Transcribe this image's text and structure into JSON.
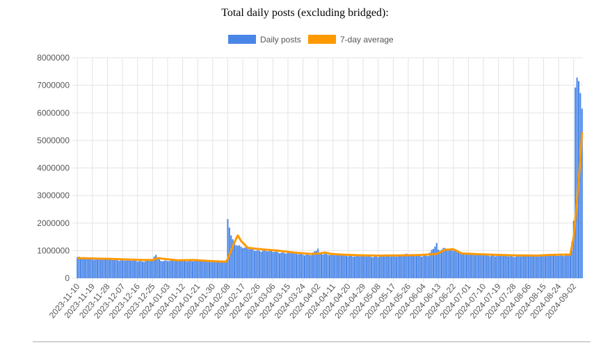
{
  "title": "Total daily posts (excluding bridged):",
  "colors": {
    "bars": "#4a86e8",
    "average": "#ff9900",
    "grid": "#e3e3e3"
  },
  "chart_data": {
    "type": "bar",
    "title": "Total daily posts (excluding bridged):",
    "xlabel": "",
    "ylabel": "",
    "ylim": [
      0,
      8000000
    ],
    "yticks": [
      "8000000",
      "7000000",
      "6000000",
      "5000000",
      "4000000",
      "3000000",
      "2000000",
      "1000000",
      "0"
    ],
    "xtick_labels": [
      "2023-11-10",
      "2023-11-19",
      "2023-11-28",
      "2023-12-07",
      "2023-12-16",
      "2023-12-25",
      "2024-01-03",
      "2024-01-12",
      "2024-01-21",
      "2024-01-30",
      "2024-02-08",
      "2024-02-17",
      "2024-02-26",
      "2024-03-06",
      "2024-03-15",
      "2024-03-24",
      "2024-04-02",
      "2024-04-11",
      "2024-04-20",
      "2024-04-29",
      "2024-05-08",
      "2024-05-17",
      "2024-05-26",
      "2024-06-04",
      "2024-06-13",
      "2024-06-22",
      "2024-07-01",
      "2024-07-10",
      "2024-07-19",
      "2024-07-28",
      "2024-08-06",
      "2024-08-15",
      "2024-08-24",
      "2024-09-02"
    ],
    "start_date": "2023-11-10",
    "grid": true,
    "legend_position": "top",
    "series": [
      {
        "name": "Daily posts",
        "kind": "bar",
        "values": []
      },
      {
        "name": "7-day average",
        "kind": "line",
        "values": []
      }
    ],
    "daily_posts_keyframes": [
      [
        0,
        760000
      ],
      [
        10,
        700000
      ],
      [
        20,
        680000
      ],
      [
        30,
        640000
      ],
      [
        40,
        620000
      ],
      [
        45,
        640000
      ],
      [
        46,
        760000
      ],
      [
        47,
        860000
      ],
      [
        48,
        720000
      ],
      [
        50,
        640000
      ],
      [
        60,
        640000
      ],
      [
        70,
        630000
      ],
      [
        80,
        610000
      ],
      [
        89,
        620000
      ],
      [
        90,
        2080000
      ],
      [
        91,
        1880000
      ],
      [
        92,
        1600000
      ],
      [
        93,
        1400000
      ],
      [
        94,
        1320000
      ],
      [
        96,
        1200000
      ],
      [
        100,
        1080000
      ],
      [
        110,
        1000000
      ],
      [
        120,
        950000
      ],
      [
        130,
        900000
      ],
      [
        140,
        850000
      ],
      [
        143,
        1000000
      ],
      [
        144,
        1060000
      ],
      [
        145,
        900000
      ],
      [
        150,
        880000
      ],
      [
        160,
        830000
      ],
      [
        170,
        800000
      ],
      [
        180,
        790000
      ],
      [
        190,
        800000
      ],
      [
        195,
        880000
      ],
      [
        200,
        820000
      ],
      [
        210,
        820000
      ],
      [
        215,
        1230000
      ],
      [
        216,
        1020000
      ],
      [
        218,
        1050000
      ],
      [
        220,
        1120000
      ],
      [
        225,
        1000000
      ],
      [
        230,
        900000
      ],
      [
        240,
        860000
      ],
      [
        250,
        820000
      ],
      [
        260,
        800000
      ],
      [
        270,
        820000
      ],
      [
        280,
        820000
      ],
      [
        290,
        840000
      ],
      [
        295,
        850000
      ],
      [
        296,
        1320000
      ],
      [
        297,
        2080000
      ],
      [
        298,
        6920000
      ],
      [
        299,
        7280000
      ],
      [
        300,
        7150000
      ],
      [
        301,
        6720000
      ],
      [
        302,
        6150000
      ]
    ],
    "average_keyframes": [
      [
        0,
        730000
      ],
      [
        20,
        700000
      ],
      [
        40,
        660000
      ],
      [
        45,
        660000
      ],
      [
        48,
        730000
      ],
      [
        52,
        700000
      ],
      [
        60,
        650000
      ],
      [
        70,
        660000
      ],
      [
        80,
        620000
      ],
      [
        89,
        600000
      ],
      [
        90,
        700000
      ],
      [
        94,
        1300000
      ],
      [
        96,
        1550000
      ],
      [
        98,
        1350000
      ],
      [
        102,
        1100000
      ],
      [
        110,
        1050000
      ],
      [
        120,
        1000000
      ],
      [
        130,
        930000
      ],
      [
        140,
        880000
      ],
      [
        145,
        900000
      ],
      [
        148,
        930000
      ],
      [
        152,
        880000
      ],
      [
        160,
        850000
      ],
      [
        170,
        830000
      ],
      [
        180,
        820000
      ],
      [
        195,
        830000
      ],
      [
        205,
        840000
      ],
      [
        215,
        880000
      ],
      [
        220,
        1030000
      ],
      [
        225,
        1050000
      ],
      [
        230,
        900000
      ],
      [
        240,
        870000
      ],
      [
        260,
        830000
      ],
      [
        275,
        820000
      ],
      [
        285,
        850000
      ],
      [
        295,
        860000
      ],
      [
        297,
        1500000
      ],
      [
        299,
        2800000
      ],
      [
        301,
        4300000
      ],
      [
        302,
        5300000
      ]
    ]
  }
}
